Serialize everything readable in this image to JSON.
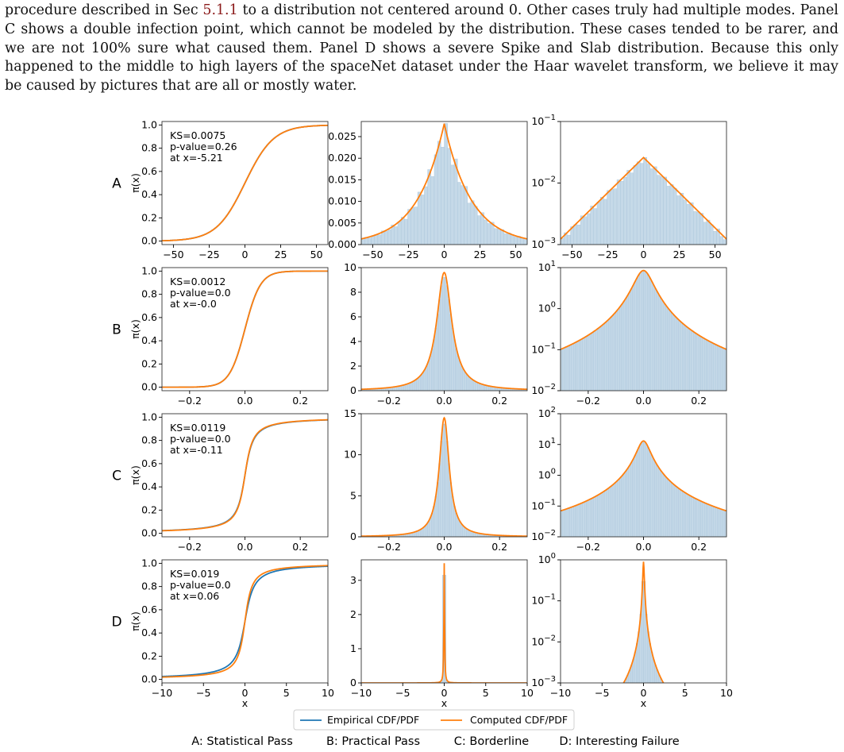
{
  "paragraph": {
    "t1": "procedure described in Sec ",
    "ref1": "5.1.1",
    "t2": " to a distribution not centered around 0. Other cases truly had multiple modes. Panel C shows a double infection point, which cannot be modeled by the distribution. These cases tended to be rarer, and we are not 100% sure what caused them. Panel D shows a severe Spike and Slab distribution. Because this only happened to the middle to high layers of the spaceNet dataset under the Haar wavelet transform, we believe it may be caused by pictures that are all or mostly water."
  },
  "figure": {
    "ylabel_cdf": "π(x)",
    "xlabel": "x",
    "legend": {
      "empirical": "Empirical CDF/PDF",
      "computed": "Computed CDF/PDF"
    },
    "captions": [
      "A: Statistical Pass",
      "B: Practical Pass",
      "C: Borderline",
      "D: Interesting Failure"
    ],
    "colors": {
      "empirical": "#1f77b4",
      "computed": "#ff7f0e",
      "hist_fill": "#c5d9e8",
      "hist_edge": "#a9c4da"
    }
  },
  "chart_data": [
    {
      "type": "line",
      "panel": "A-cdf",
      "row": "A",
      "xlim": [
        -58,
        58
      ],
      "ylim": [
        -0.03,
        1.03
      ],
      "xticks": [
        -50,
        -25,
        0,
        25,
        50
      ],
      "yticks": [
        "0.0",
        "0.2",
        "0.4",
        "0.6",
        "0.8",
        "1.0"
      ],
      "annotation": [
        "KS=0.0075",
        "p-value=0.26",
        "at x=-5.21"
      ],
      "series": [
        {
          "name": "Empirical CDF/PDF",
          "model": "logistic",
          "loc": 0,
          "scale": 10
        },
        {
          "name": "Computed CDF/PDF",
          "model": "logistic",
          "loc": 0,
          "scale": 10
        }
      ]
    },
    {
      "type": "bar",
      "panel": "A-pdf",
      "row": "A",
      "xlim": [
        -58,
        58
      ],
      "ylim": [
        0,
        0.0285
      ],
      "xticks": [
        -50,
        -25,
        0,
        25,
        50
      ],
      "yticks": [
        "0.000",
        "0.005",
        "0.010",
        "0.015",
        "0.020",
        "0.025"
      ],
      "series": [
        {
          "name": "Computed CDF/PDF",
          "model": "laplace",
          "peak": 0.028,
          "scale": 19
        }
      ]
    },
    {
      "type": "bar",
      "panel": "A-log",
      "row": "A",
      "log_y": true,
      "xlim": [
        -58,
        58
      ],
      "ylim": [
        0.001,
        0.1
      ],
      "xticks": [
        -50,
        -25,
        0,
        25,
        50
      ],
      "yticks": [
        [
          "10",
          "−1"
        ],
        [
          "10",
          "−2"
        ],
        [
          "10",
          "−3"
        ]
      ],
      "series": [
        {
          "name": "Computed CDF/PDF",
          "model": "laplace",
          "peak": 0.026,
          "scale": 19
        }
      ]
    },
    {
      "type": "line",
      "panel": "B-cdf",
      "row": "B",
      "xlim": [
        -0.3,
        0.3
      ],
      "ylim": [
        -0.03,
        1.03
      ],
      "xticks": [
        "−0.2",
        "0.0",
        "0.2"
      ],
      "yticks": [
        "0.0",
        "0.2",
        "0.4",
        "0.6",
        "0.8",
        "1.0"
      ],
      "annotation": [
        "KS=0.0012",
        "p-value=0.0",
        "at x=-0.0"
      ],
      "series": [
        {
          "name": "Empirical CDF/PDF",
          "model": "logistic",
          "loc": 0,
          "scale": 0.028
        },
        {
          "name": "Computed CDF/PDF",
          "model": "logistic",
          "loc": 0,
          "scale": 0.028
        }
      ]
    },
    {
      "type": "bar",
      "panel": "B-pdf",
      "row": "B",
      "xlim": [
        -0.3,
        0.3
      ],
      "ylim": [
        0,
        10
      ],
      "xticks": [
        "−0.2",
        "0.0",
        "0.2"
      ],
      "yticks": [
        "0",
        "2",
        "4",
        "6",
        "8",
        "10"
      ],
      "series": [
        {
          "name": "Computed CDF/PDF",
          "model": "cauchy",
          "peak": 9.6,
          "scale": 0.033
        }
      ]
    },
    {
      "type": "bar",
      "panel": "B-log",
      "row": "B",
      "log_y": true,
      "xlim": [
        -0.3,
        0.3
      ],
      "ylim": [
        0.01,
        10
      ],
      "xticks": [
        "−0.2",
        "0.0",
        "0.2"
      ],
      "yticks": [
        [
          "10",
          "1"
        ],
        [
          "10",
          "0"
        ],
        [
          "10",
          "−1"
        ],
        [
          "10",
          "−2"
        ]
      ],
      "series": [
        {
          "name": "Computed CDF/PDF",
          "model": "cauchy",
          "peak": 8.5,
          "scale": 0.033
        }
      ]
    },
    {
      "type": "line",
      "panel": "C-cdf",
      "row": "C",
      "xlim": [
        -0.3,
        0.3
      ],
      "ylim": [
        -0.03,
        1.03
      ],
      "xticks": [
        "−0.2",
        "0.0",
        "0.2"
      ],
      "yticks": [
        "0.0",
        "0.2",
        "0.4",
        "0.6",
        "0.8",
        "1.0"
      ],
      "annotation": [
        "KS=0.0119",
        "p-value=0.0",
        "at x=-0.11"
      ],
      "series": [
        {
          "name": "Empirical CDF/PDF",
          "model": "atan",
          "loc": 0,
          "scale": 0.022
        },
        {
          "name": "Computed CDF/PDF",
          "model": "atan",
          "loc": 0,
          "scale": 0.021
        }
      ]
    },
    {
      "type": "bar",
      "panel": "C-pdf",
      "row": "C",
      "xlim": [
        -0.3,
        0.3
      ],
      "ylim": [
        0,
        15
      ],
      "xticks": [
        "−0.2",
        "0.0",
        "0.2"
      ],
      "yticks": [
        "0",
        "5",
        "10",
        "15"
      ],
      "series": [
        {
          "name": "Computed CDF/PDF",
          "model": "cauchy",
          "peak": 14.5,
          "scale": 0.022
        }
      ]
    },
    {
      "type": "bar",
      "panel": "C-log",
      "row": "C",
      "log_y": true,
      "xlim": [
        -0.3,
        0.3
      ],
      "ylim": [
        0.01,
        100
      ],
      "xticks": [
        "−0.2",
        "0.0",
        "0.2"
      ],
      "yticks": [
        [
          "10",
          "2"
        ],
        [
          "10",
          "1"
        ],
        [
          "10",
          "0"
        ],
        [
          "10",
          "−1"
        ],
        [
          "10",
          "−2"
        ]
      ],
      "series": [
        {
          "name": "Computed CDF/PDF",
          "model": "cauchy",
          "peak": 13,
          "scale": 0.022
        }
      ]
    },
    {
      "type": "line",
      "panel": "D-cdf",
      "row": "D",
      "xlim": [
        -10,
        10
      ],
      "ylim": [
        -0.03,
        1.03
      ],
      "xticks": [
        "−10",
        "−5",
        "0",
        "5",
        "10"
      ],
      "yticks": [
        "0.0",
        "0.2",
        "0.4",
        "0.6",
        "0.8",
        "1.0"
      ],
      "annotation": [
        "KS=0.019",
        "p-value=0.0",
        "at x=0.06"
      ],
      "series": [
        {
          "name": "Empirical CDF/PDF",
          "model": "atan",
          "loc": 0,
          "scale": 0.8
        },
        {
          "name": "Computed CDF/PDF",
          "model": "atan",
          "loc": 0,
          "scale": 0.62
        }
      ]
    },
    {
      "type": "bar",
      "panel": "D-pdf",
      "row": "D",
      "xlim": [
        -10,
        10
      ],
      "ylim": [
        0,
        3.6
      ],
      "xticks": [
        "−10",
        "−5",
        "0",
        "5",
        "10"
      ],
      "yticks": [
        "0",
        "1",
        "2",
        "3"
      ],
      "series": [
        {
          "name": "Computed CDF/PDF",
          "model": "cauchy",
          "peak": 3.5,
          "scale": 0.05
        }
      ]
    },
    {
      "type": "bar",
      "panel": "D-log",
      "row": "D",
      "log_y": true,
      "xlim": [
        -10,
        10
      ],
      "ylim": [
        0.001,
        1
      ],
      "xticks": [
        "−10",
        "−5",
        "0",
        "5",
        "10"
      ],
      "yticks": [
        [
          "10",
          "0"
        ],
        [
          "10",
          "−1"
        ],
        [
          "10",
          "−2"
        ],
        [
          "10",
          "−3"
        ]
      ],
      "series": [
        {
          "name": "Computed CDF/PDF",
          "model": "cauchy",
          "peak": 0.9,
          "scale": 0.08
        }
      ]
    }
  ]
}
